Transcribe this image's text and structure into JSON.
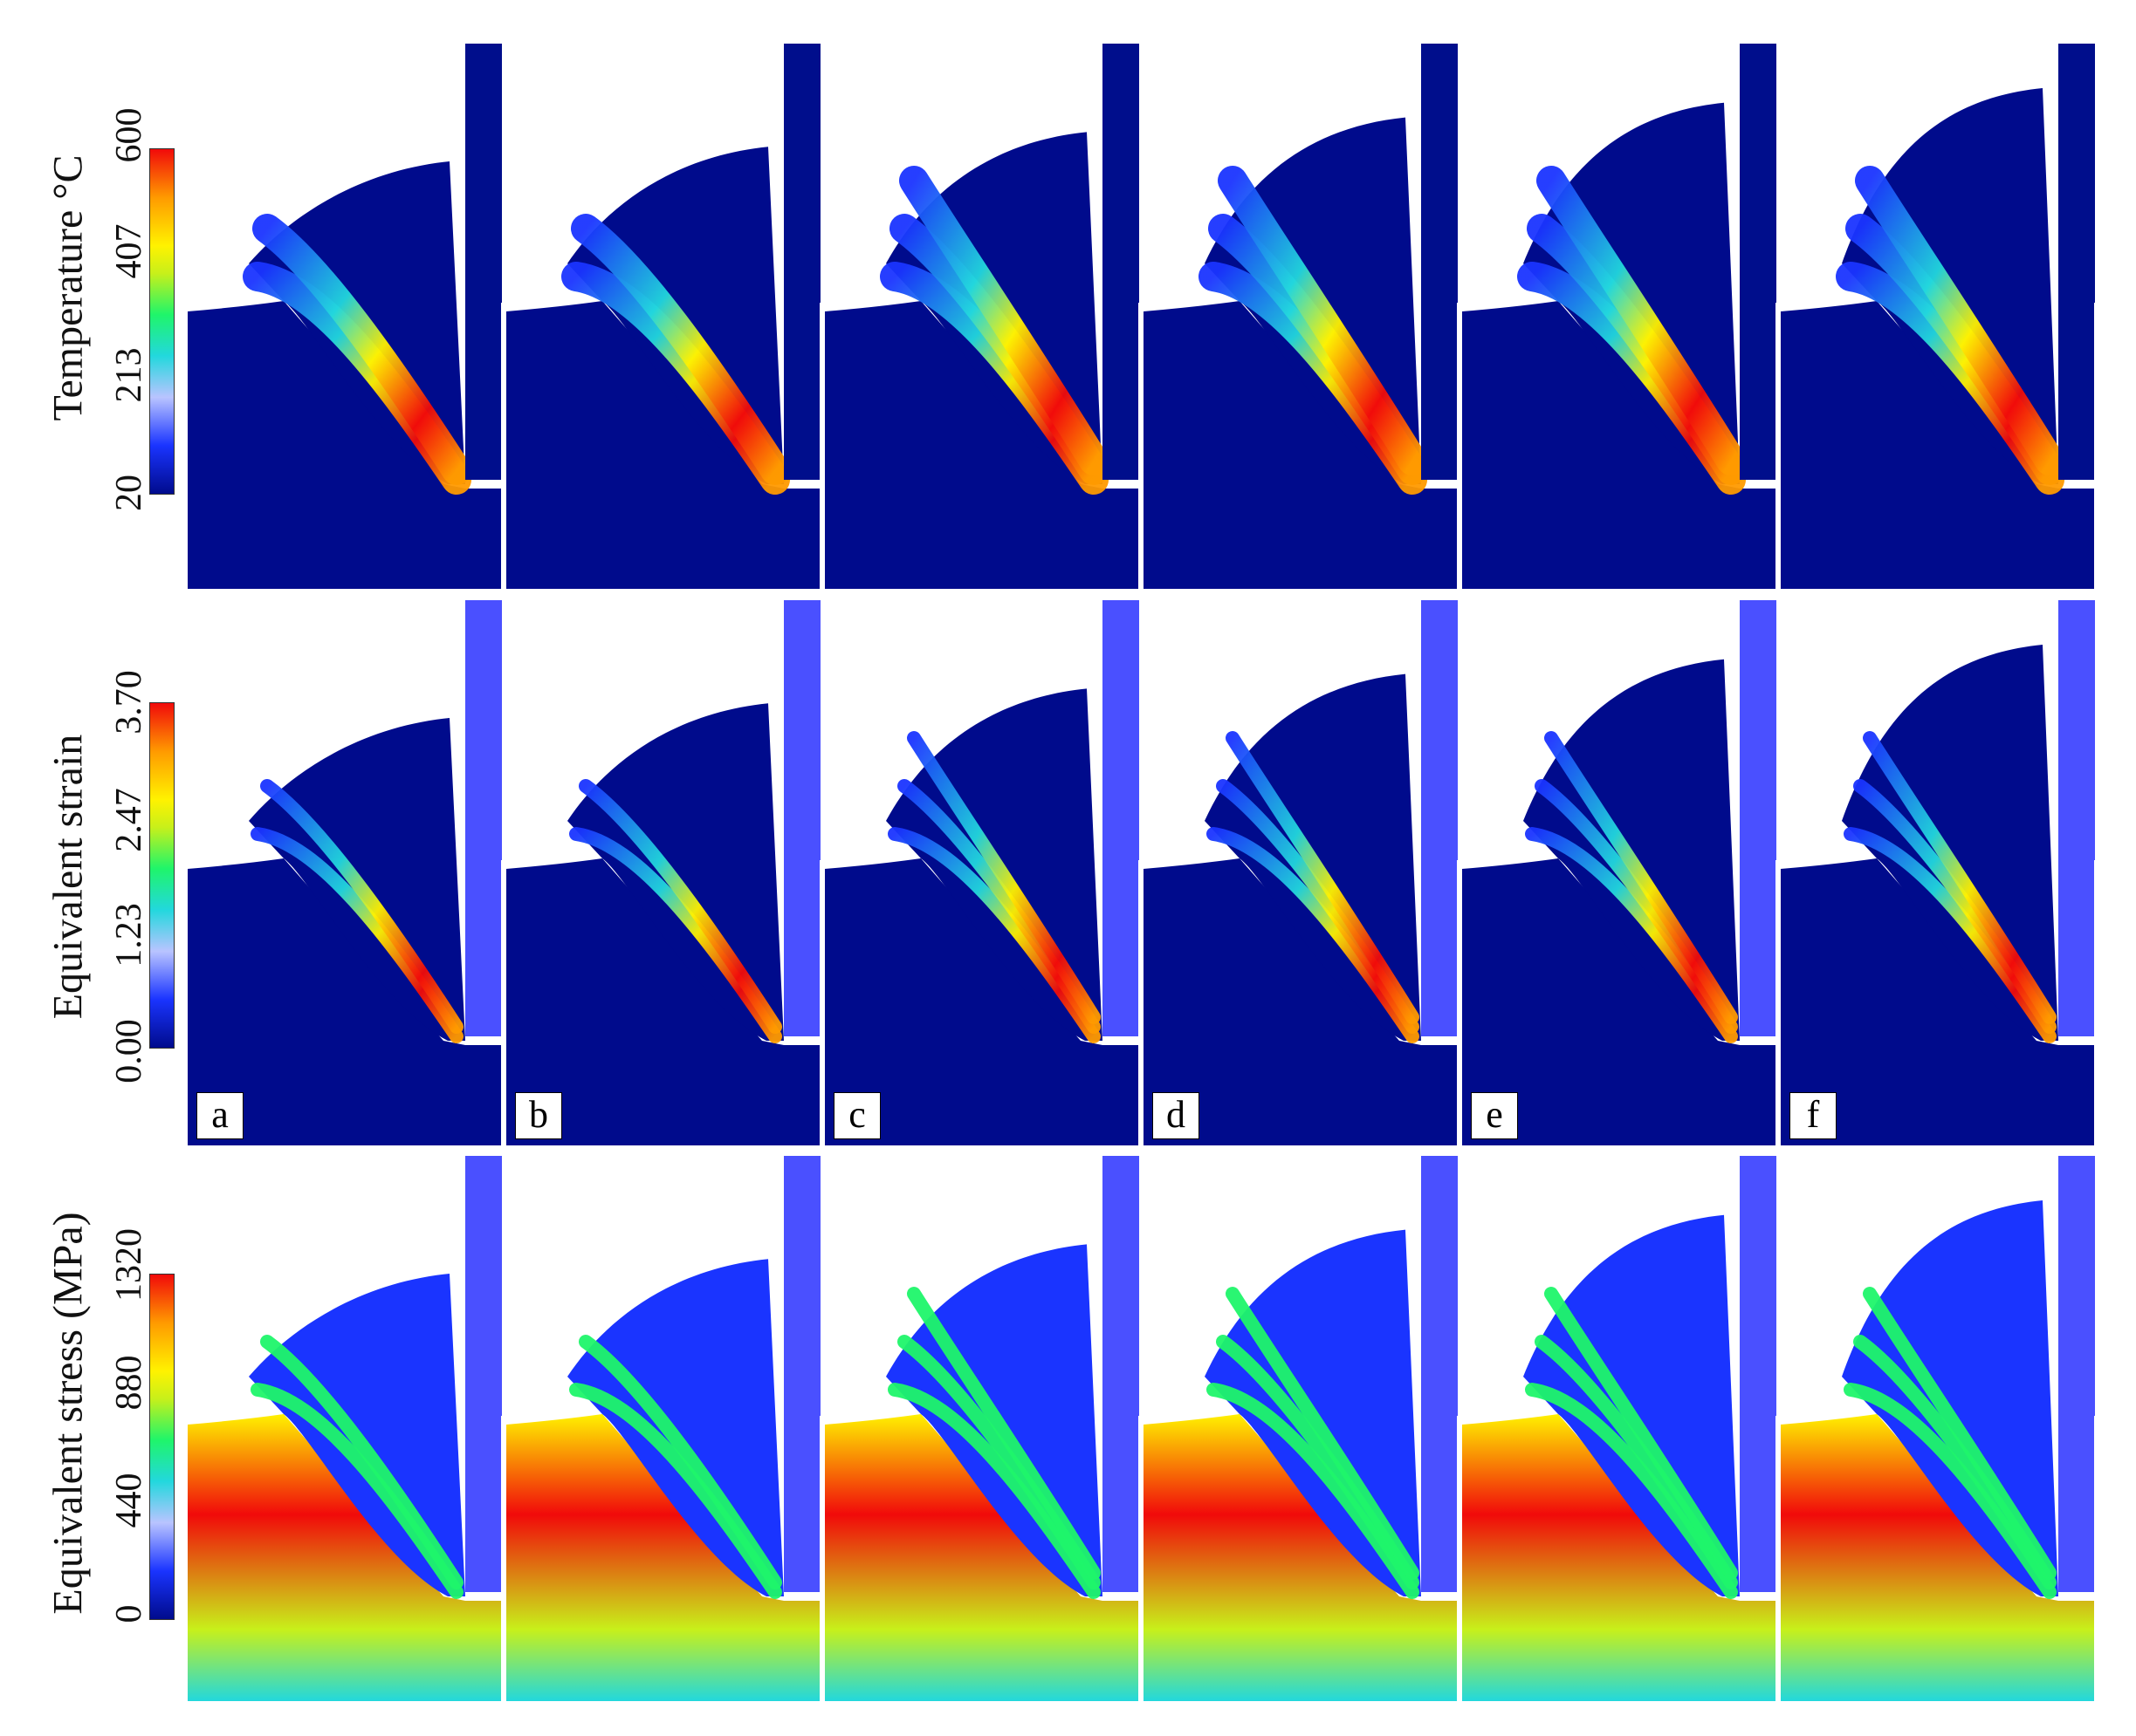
{
  "figure": {
    "rows": [
      {
        "id": "temperature",
        "label": "Temperature °C",
        "ticks": [
          "20",
          "213",
          "407",
          "600"
        ],
        "tool_color": "#000e8c"
      },
      {
        "id": "strain",
        "label": "Equivalent strain",
        "ticks": [
          "0.00",
          "1.23",
          "2.47",
          "3.70"
        ],
        "tool_color": "#4a50ff"
      },
      {
        "id": "stress",
        "label": "Equivalent stress (MPa)",
        "ticks": [
          "0",
          "440",
          "880",
          "1320"
        ],
        "tool_color": "#4a50ff"
      }
    ],
    "panel_letters": [
      "a",
      "b",
      "c",
      "d",
      "e",
      "f"
    ],
    "colormap": [
      "#000b8c",
      "#1a34ff",
      "#b9c4ff",
      "#22d8dd",
      "#1ff56a",
      "#c8f01a",
      "#fff200",
      "#ff9a00",
      "#f10a0a"
    ]
  }
}
